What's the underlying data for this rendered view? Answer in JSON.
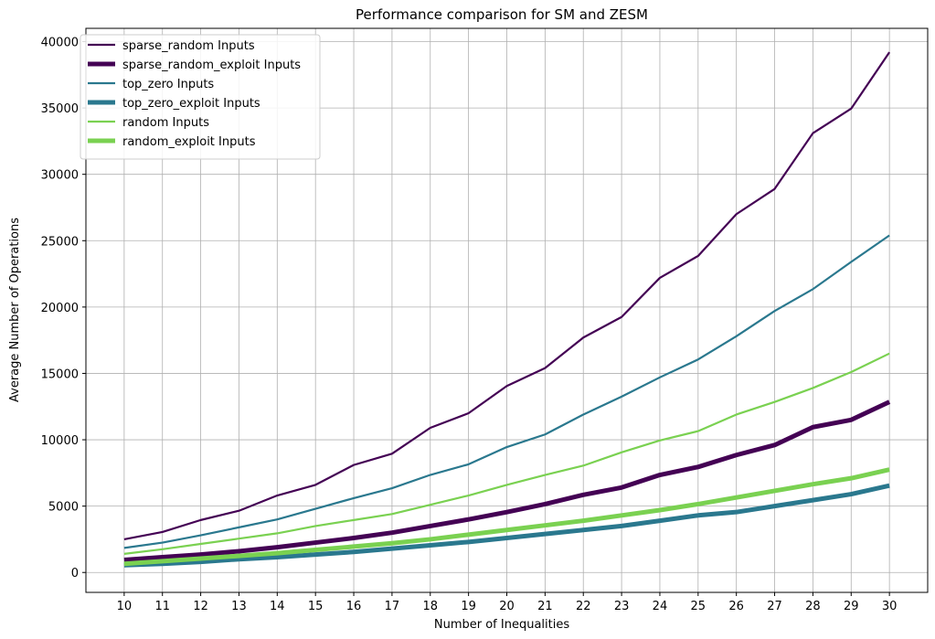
{
  "chart_data": {
    "type": "line",
    "title": "Performance comparison for SM and ZESM",
    "xlabel": "Number of Inequalities",
    "ylabel": "Average Number of Operations",
    "x": [
      10,
      11,
      12,
      13,
      14,
      15,
      16,
      17,
      18,
      19,
      20,
      21,
      22,
      23,
      24,
      25,
      26,
      27,
      28,
      29,
      30
    ],
    "xlim": [
      9,
      31
    ],
    "ylim": [
      -1500,
      41000
    ],
    "yticks": [
      0,
      5000,
      10000,
      15000,
      20000,
      25000,
      30000,
      35000,
      40000
    ],
    "grid": true,
    "legend_position": "top-left",
    "series": [
      {
        "name": "sparse_random Inputs",
        "color": "#440154",
        "style": "thin",
        "values": [
          2500,
          3050,
          3950,
          4650,
          5800,
          6600,
          8100,
          8950,
          10900,
          12000,
          14050,
          15400,
          17700,
          19250,
          22200,
          23850,
          27000,
          28900,
          33100,
          34950,
          39200
        ]
      },
      {
        "name": "sparse_random_exploit Inputs",
        "color": "#440154",
        "style": "thick",
        "values": [
          950,
          1150,
          1350,
          1600,
          1900,
          2250,
          2600,
          3000,
          3500,
          4000,
          4550,
          5150,
          5850,
          6400,
          7350,
          7950,
          8850,
          9600,
          10950,
          11500,
          12850
        ]
      },
      {
        "name": "top_zero Inputs",
        "color": "#2a788e",
        "style": "thin",
        "values": [
          1850,
          2250,
          2800,
          3400,
          4000,
          4800,
          5600,
          6350,
          7350,
          8150,
          9450,
          10400,
          11900,
          13250,
          14700,
          16050,
          17800,
          19700,
          21350,
          23400,
          25400
        ]
      },
      {
        "name": "top_zero_exploit Inputs",
        "color": "#2a788e",
        "style": "thick",
        "values": [
          550,
          650,
          800,
          1000,
          1150,
          1350,
          1550,
          1800,
          2050,
          2300,
          2600,
          2900,
          3200,
          3500,
          3900,
          4300,
          4550,
          5000,
          5450,
          5900,
          6550
        ]
      },
      {
        "name": "random Inputs",
        "color": "#7ad151",
        "style": "thin",
        "values": [
          1400,
          1750,
          2150,
          2550,
          2950,
          3500,
          3950,
          4400,
          5100,
          5800,
          6600,
          7350,
          8050,
          9050,
          9950,
          10650,
          11900,
          12850,
          13900,
          15100,
          16500
        ]
      },
      {
        "name": "random_exploit Inputs",
        "color": "#7ad151",
        "style": "thick",
        "values": [
          650,
          850,
          1050,
          1250,
          1450,
          1700,
          1950,
          2200,
          2500,
          2850,
          3200,
          3550,
          3900,
          4300,
          4700,
          5150,
          5650,
          6150,
          6650,
          7100,
          7750
        ]
      }
    ]
  }
}
